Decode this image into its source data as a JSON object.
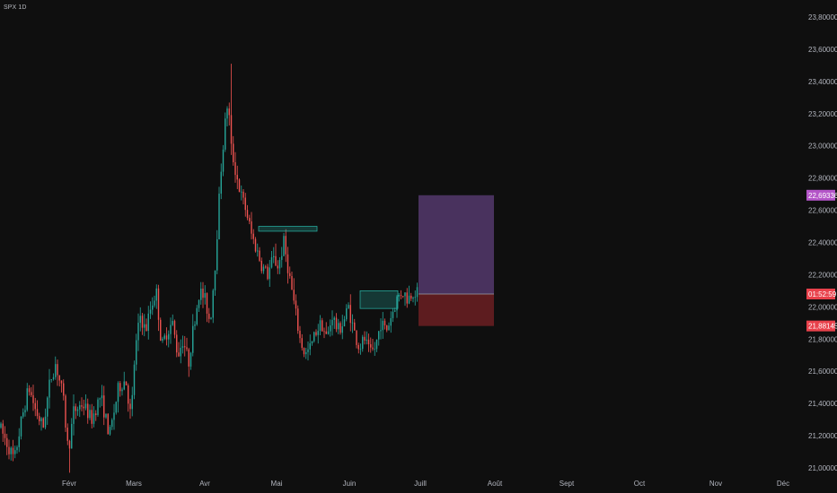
{
  "header": {
    "symbol_title": "SPX 1D"
  },
  "chart_data": {
    "type": "candlestick",
    "title": "SPX",
    "timeframe": "1D",
    "x_labels": [
      "Févr",
      "Mars",
      "Avr",
      "Mai",
      "Juin",
      "Juill",
      "Août",
      "Sept",
      "Oct",
      "Nov",
      "Déc"
    ],
    "y_ticks": [
      "23,80000",
      "23,60000",
      "23,40000",
      "23,20000",
      "23,00000",
      "22,80000",
      "22,60000",
      "22,40000",
      "22,20000",
      "22,00000",
      "21,80000",
      "21,60000",
      "21,40000",
      "21,20000",
      "21,00000"
    ],
    "ylim": [
      21.0,
      23.8
    ],
    "price_path": [
      [
        0,
        21.25
      ],
      [
        8,
        21.15
      ],
      [
        16,
        21.05
      ],
      [
        24,
        21.3
      ],
      [
        32,
        21.5
      ],
      [
        40,
        21.35
      ],
      [
        48,
        21.25
      ],
      [
        56,
        21.55
      ],
      [
        62,
        21.65
      ],
      [
        70,
        21.45
      ],
      [
        76,
        21.1
      ],
      [
        82,
        21.35
      ],
      [
        92,
        21.4
      ],
      [
        102,
        21.3
      ],
      [
        112,
        21.45
      ],
      [
        122,
        21.2
      ],
      [
        132,
        21.5
      ],
      [
        140,
        21.55
      ],
      [
        146,
        21.3
      ],
      [
        150,
        21.7
      ],
      [
        156,
        21.95
      ],
      [
        162,
        21.85
      ],
      [
        168,
        22.0
      ],
      [
        174,
        22.1
      ],
      [
        180,
        21.75
      ],
      [
        186,
        21.85
      ],
      [
        192,
        21.9
      ],
      [
        198,
        21.7
      ],
      [
        204,
        21.8
      ],
      [
        210,
        21.65
      ],
      [
        216,
        21.9
      ],
      [
        222,
        22.1
      ],
      [
        228,
        22.05
      ],
      [
        234,
        21.9
      ],
      [
        240,
        22.3
      ],
      [
        246,
        22.85
      ],
      [
        250,
        23.1
      ],
      [
        254,
        23.3
      ],
      [
        257,
        23.0
      ],
      [
        262,
        22.85
      ],
      [
        268,
        22.7
      ],
      [
        274,
        22.6
      ],
      [
        280,
        22.45
      ],
      [
        286,
        22.35
      ],
      [
        292,
        22.25
      ],
      [
        298,
        22.2
      ],
      [
        304,
        22.3
      ],
      [
        310,
        22.25
      ],
      [
        316,
        22.4
      ],
      [
        322,
        22.2
      ],
      [
        328,
        22.0
      ],
      [
        334,
        21.8
      ],
      [
        340,
        21.7
      ],
      [
        346,
        21.75
      ],
      [
        352,
        21.85
      ],
      [
        358,
        21.9
      ],
      [
        364,
        21.8
      ],
      [
        370,
        21.95
      ],
      [
        376,
        21.85
      ],
      [
        382,
        21.9
      ],
      [
        388,
        22.0
      ],
      [
        394,
        21.85
      ],
      [
        400,
        21.75
      ],
      [
        406,
        21.8
      ],
      [
        412,
        21.7
      ],
      [
        418,
        21.75
      ],
      [
        424,
        21.9
      ],
      [
        430,
        21.85
      ],
      [
        436,
        21.95
      ],
      [
        442,
        22.05
      ],
      [
        448,
        22.1
      ],
      [
        454,
        22.05
      ],
      [
        460,
        22.1
      ],
      [
        466,
        22.08
      ]
    ],
    "high_spike_price": 23.51,
    "low_spike_price": 20.97,
    "zones": [
      {
        "name": "supply-zone",
        "price_top": 22.5,
        "price_bottom": 22.47,
        "color": "#26a69a"
      },
      {
        "name": "demand-zone",
        "price_top": 22.1,
        "price_bottom": 21.99,
        "color": "#26a69a"
      }
    ],
    "position": {
      "type": "long",
      "entry": 22.08,
      "target": 22.69336,
      "stop": 21.88145,
      "target_color": "#5d3f7a",
      "stop_color": "#6b1f22"
    },
    "price_labels": [
      {
        "text": "22,69336",
        "price": 22.69336,
        "color": "#b455c8"
      },
      {
        "text": "01:52:59",
        "price": 22.08,
        "color": "#e8414b"
      },
      {
        "text": "21,88145",
        "price": 21.88145,
        "color": "#e8414b"
      }
    ],
    "candle_up_color": "#26a69a",
    "candle_down_color": "#ef5350",
    "grid": false
  }
}
